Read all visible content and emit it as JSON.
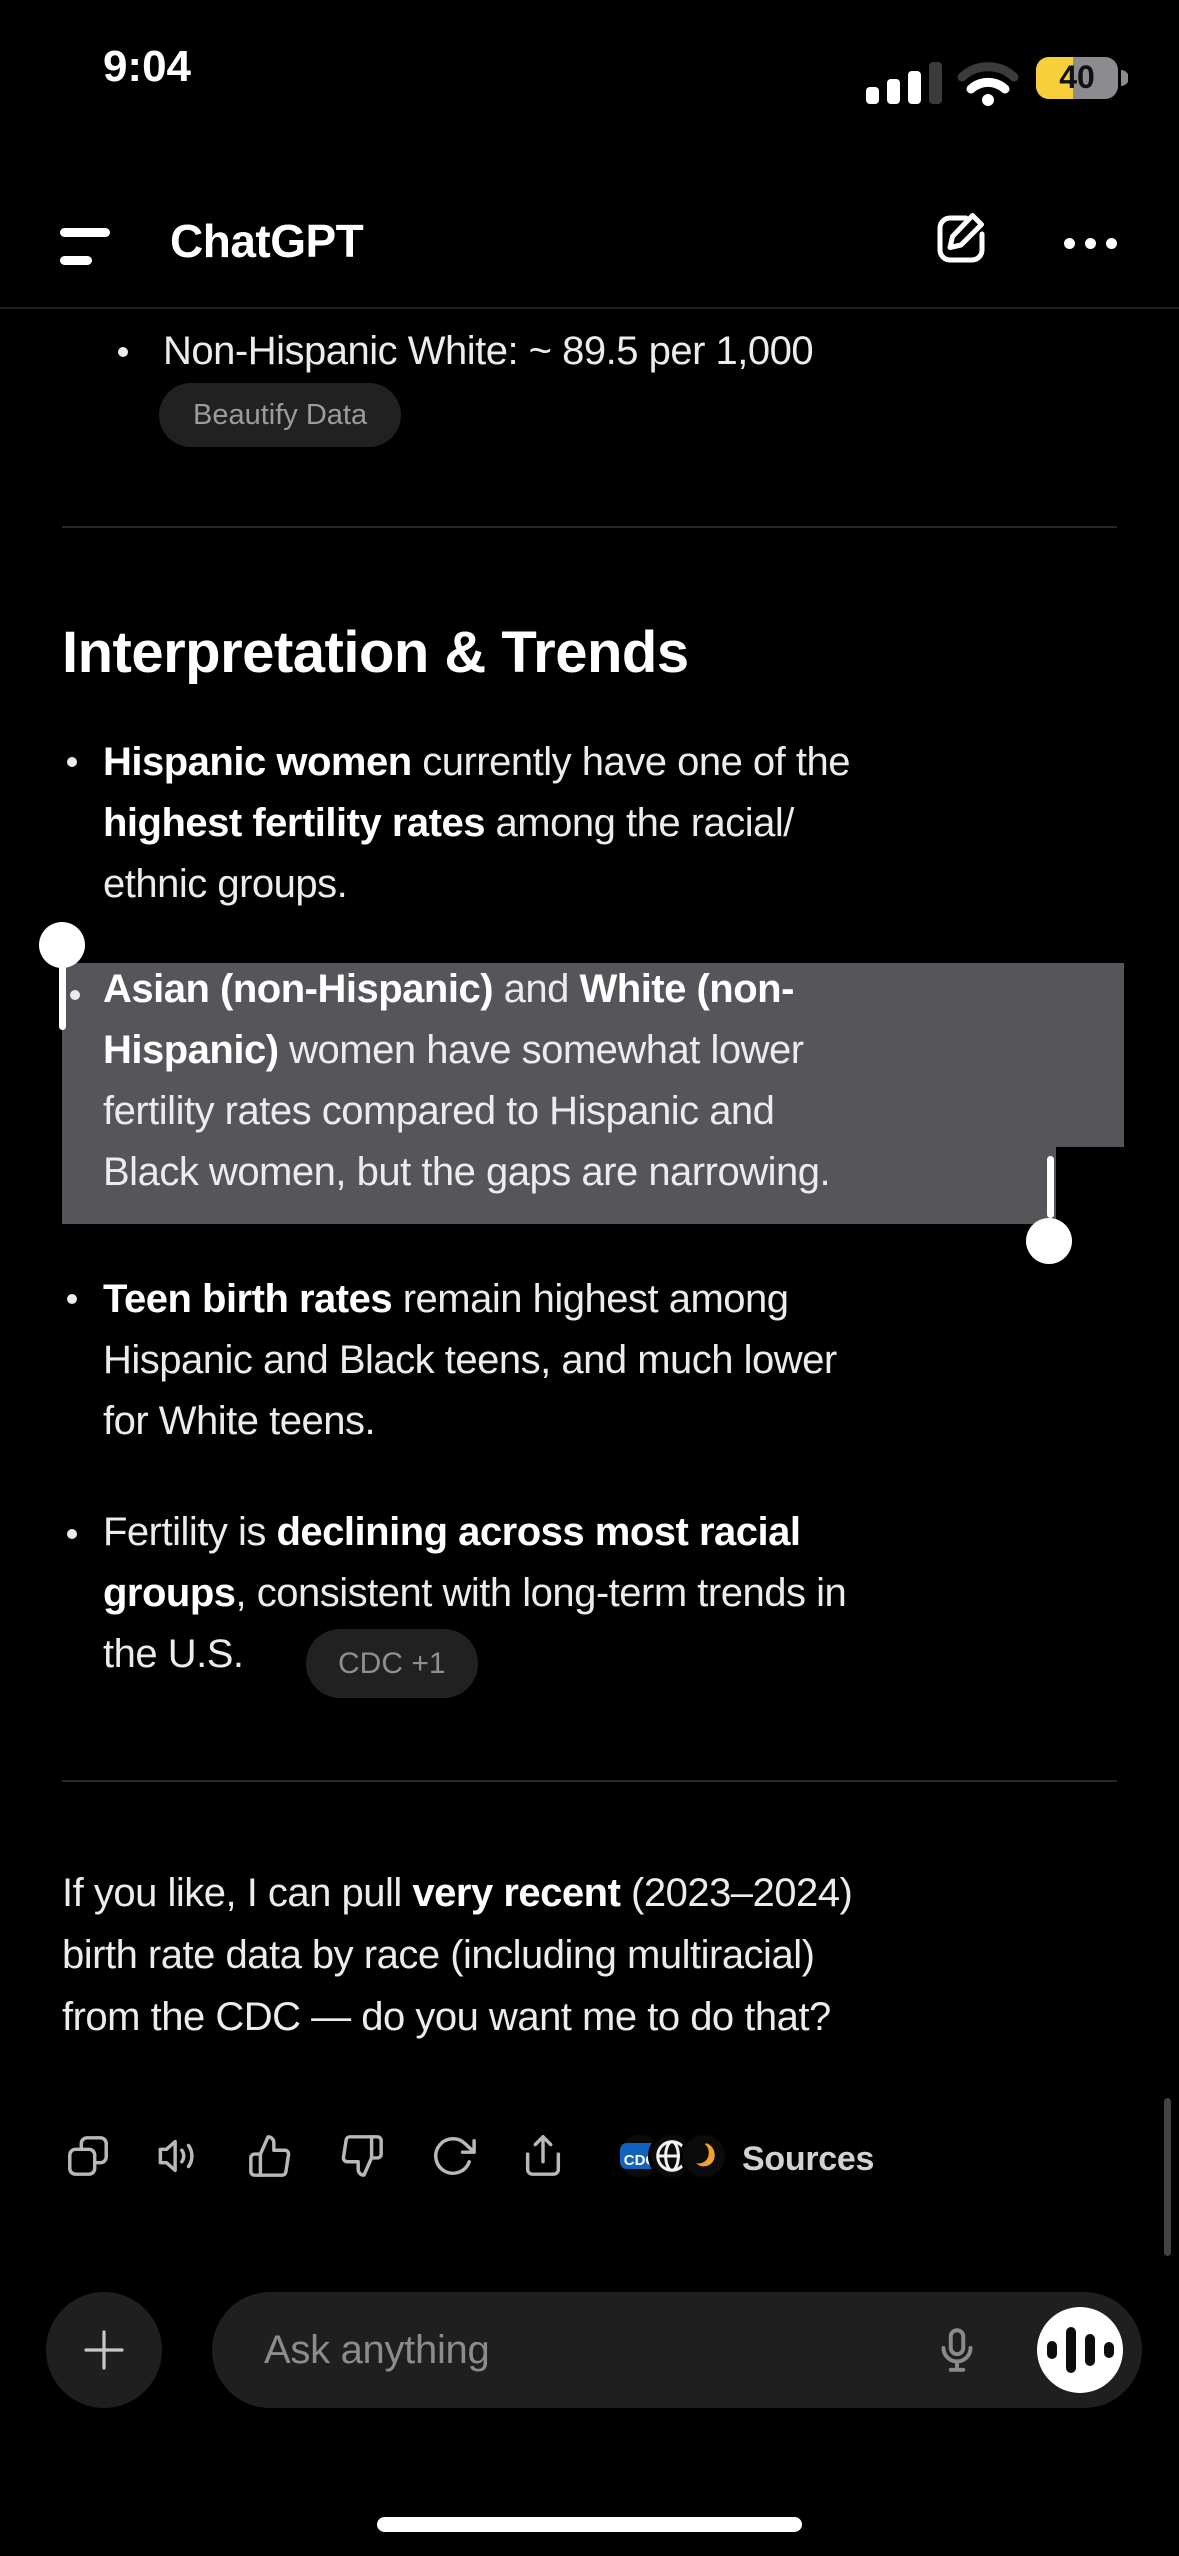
{
  "status_bar": {
    "time": "9:04",
    "battery_percent": "40"
  },
  "header": {
    "title": "ChatGPT"
  },
  "message": {
    "top_bullet": {
      "lines": [
        [
          {
            "t": "Non-Hispanic White: ~ 89.5 per 1,000",
            "b": false
          }
        ]
      ]
    },
    "beautify_chip_label": "Beautify Data",
    "section_heading": "Interpretation & Trends",
    "bullets": [
      {
        "lines": [
          [
            {
              "t": "Hispanic women",
              "b": true
            },
            {
              "t": " currently have one of the",
              "b": false
            }
          ],
          [
            {
              "t": "highest fertility rates",
              "b": true
            },
            {
              "t": " among the racial/",
              "b": false
            }
          ],
          [
            {
              "t": "ethnic groups.",
              "b": false
            }
          ]
        ]
      },
      {
        "selected": true,
        "lines": [
          [
            {
              "t": "Asian (non-Hispanic)",
              "b": true
            },
            {
              "t": " and ",
              "b": false
            },
            {
              "t": "White (non-",
              "b": true
            }
          ],
          [
            {
              "t": "Hispanic)",
              "b": true
            },
            {
              "t": " women have somewhat lower",
              "b": false
            }
          ],
          [
            {
              "t": "fertility rates compared to Hispanic and",
              "b": false
            }
          ],
          [
            {
              "t": "Black women, but the gaps are narrowing.",
              "b": false
            }
          ]
        ]
      },
      {
        "lines": [
          [
            {
              "t": "Teen birth rates",
              "b": true
            },
            {
              "t": " remain highest among",
              "b": false
            }
          ],
          [
            {
              "t": "Hispanic and Black teens, and much lower",
              "b": false
            }
          ],
          [
            {
              "t": "for White teens.",
              "b": false
            }
          ]
        ]
      },
      {
        "lines": [
          [
            {
              "t": "Fertility is ",
              "b": false
            },
            {
              "t": "declining across most racial",
              "b": true
            }
          ],
          [
            {
              "t": "groups",
              "b": true
            },
            {
              "t": ", consistent with long-term trends in",
              "b": false
            }
          ],
          [
            {
              "t": "the U.S.",
              "b": false
            }
          ]
        ]
      }
    ],
    "citation_chip_label": "CDC +1",
    "closing": {
      "lines": [
        [
          {
            "t": "If you like, I can pull ",
            "b": false
          },
          {
            "t": "very recent",
            "b": true
          },
          {
            "t": " (2023–2024)",
            "b": false
          }
        ],
        [
          {
            "t": "birth rate data by race (including multiracial)",
            "b": false
          }
        ],
        [
          {
            "t": "from the CDC — do you want me to do that?",
            "b": false
          }
        ]
      ]
    },
    "actions": {
      "sources_label": "Sources",
      "cdc_favicon_label": "CDC"
    }
  },
  "composer": {
    "placeholder": "Ask anything"
  },
  "colors": {
    "background": "#000000",
    "body_text": "#ececec",
    "selection_highlight": "#56565a",
    "chip_background": "#212121",
    "battery_low_power_yellow": "#f6cf3a",
    "cdc_favicon_blue": "#1263c0",
    "source_favicon_orange": "#f0a12f"
  }
}
